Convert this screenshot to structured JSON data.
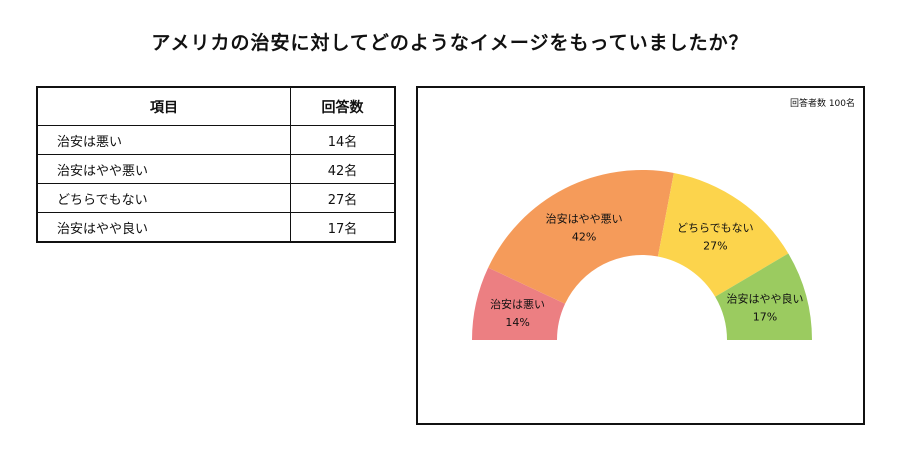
{
  "title": "アメリカの治安に対してどのようなイメージをもっていましたか？",
  "table": {
    "headers": [
      "項目",
      "回答数"
    ],
    "rows": [
      {
        "item": "治安は悪い",
        "count": "14名"
      },
      {
        "item": "治安はやや悪い",
        "count": "42名"
      },
      {
        "item": "どちらでもない",
        "count": "27名"
      },
      {
        "item": "治安はやや良い",
        "count": "17名"
      }
    ]
  },
  "respondents": "回答者数 100名",
  "chart_data": {
    "type": "pie",
    "subtype": "half-donut",
    "categories": [
      "治安は悪い",
      "治安はやや悪い",
      "どちらでもない",
      "治安はやや良い"
    ],
    "values": [
      14,
      42,
      27,
      17
    ],
    "value_labels": [
      "14%",
      "42%",
      "27%",
      "17%"
    ],
    "colors": [
      "#ec7f82",
      "#f59b5a",
      "#fcd44c",
      "#9bcb60"
    ]
  }
}
